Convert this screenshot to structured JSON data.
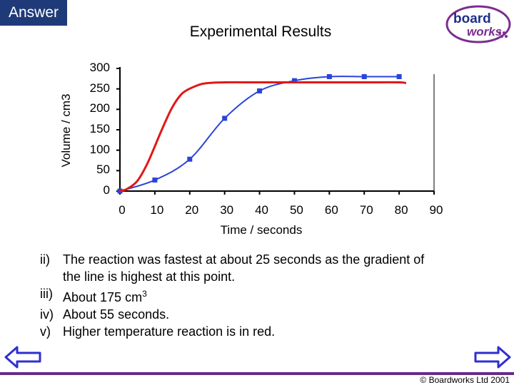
{
  "header": {
    "tab_label": "Answer",
    "logo_text": [
      "board",
      "works"
    ]
  },
  "chart_data": {
    "type": "line",
    "title": "Experimental Results",
    "xlabel": "Time / seconds",
    "ylabel": "Volume / cm3",
    "xlim": [
      0,
      90
    ],
    "ylim": [
      0,
      300
    ],
    "x_ticks": [
      0,
      10,
      20,
      30,
      40,
      50,
      60,
      70,
      80,
      90
    ],
    "y_ticks": [
      0,
      50,
      100,
      150,
      200,
      250,
      300
    ],
    "grid": false,
    "legend": "none",
    "series": [
      {
        "color": "#2a44d8",
        "marker": "square",
        "x": [
          0,
          10,
          20,
          30,
          40,
          50,
          60,
          70,
          80
        ],
        "y": [
          0,
          27,
          78,
          178,
          245,
          270,
          280,
          280,
          280
        ]
      },
      {
        "color": "#e01818",
        "marker": "none",
        "x": [
          0,
          2,
          5,
          8,
          12,
          15,
          18,
          22,
          25,
          30,
          40,
          50,
          60,
          70,
          80,
          82
        ],
        "y": [
          0,
          5,
          25,
          70,
          150,
          205,
          240,
          258,
          264,
          266,
          266,
          266,
          266,
          266,
          266,
          264
        ]
      }
    ]
  },
  "answers": [
    {
      "num": "ii)",
      "lines": [
        "The reaction was fastest at about 25 seconds as the gradient of",
        "the line is highest at this point."
      ]
    },
    {
      "num": "iii)",
      "text": "About 175 cm",
      "sup": "3"
    },
    {
      "num": "iv)",
      "text": "About 55 seconds."
    },
    {
      "num": "v)",
      "text": "Higher temperature reaction is in red."
    }
  ],
  "footer": {
    "copyright": "© Boardworks Ltd 2001",
    "bar_color": "#6a2a8a"
  },
  "colors": {
    "tab_bg": "#1f3a78",
    "arrow": "#2f2fd0"
  }
}
